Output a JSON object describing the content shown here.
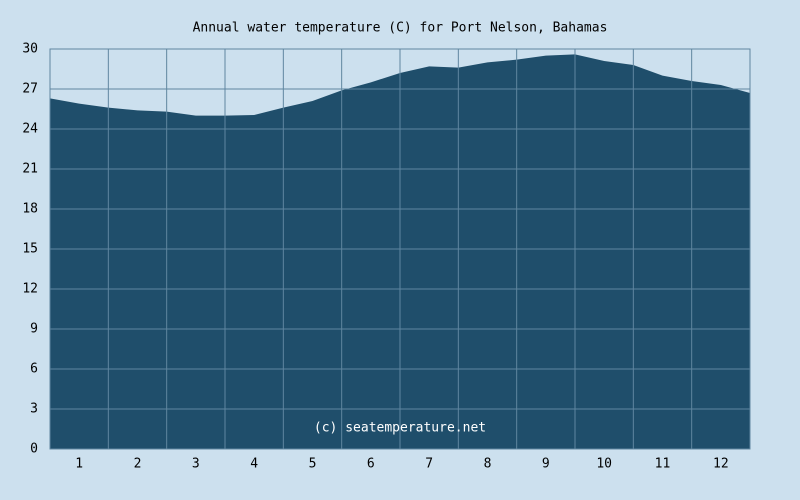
{
  "chart_data": {
    "type": "area",
    "title": "Annual water temperature (C) for Port Nelson, Bahamas",
    "annotation": "(c) seatemperature.net",
    "x": [
      0,
      0.5,
      1,
      1.5,
      2,
      2.5,
      3,
      3.5,
      4,
      4.5,
      5,
      5.5,
      6,
      6.5,
      7,
      7.5,
      8,
      8.5,
      9,
      9.5,
      10,
      10.5,
      11,
      11.5,
      12
    ],
    "values": [
      26.3,
      25.9,
      25.6,
      25.4,
      25.3,
      25.0,
      25.0,
      25.05,
      25.6,
      26.1,
      26.9,
      27.5,
      28.2,
      28.7,
      28.6,
      29.0,
      29.2,
      29.5,
      29.6,
      29.1,
      28.8,
      28.0,
      27.6,
      27.3,
      26.7
    ],
    "color": "#1f4e6b",
    "xlim": [
      0,
      12
    ],
    "xticks": [
      {
        "value": 0.5,
        "label": "1"
      },
      {
        "value": 1.5,
        "label": "2"
      },
      {
        "value": 2.5,
        "label": "3"
      },
      {
        "value": 3.5,
        "label": "4"
      },
      {
        "value": 4.5,
        "label": "5"
      },
      {
        "value": 5.5,
        "label": "6"
      },
      {
        "value": 6.5,
        "label": "7"
      },
      {
        "value": 7.5,
        "label": "8"
      },
      {
        "value": 8.5,
        "label": "9"
      },
      {
        "value": 9.5,
        "label": "10"
      },
      {
        "value": 10.5,
        "label": "11"
      },
      {
        "value": 11.5,
        "label": "12"
      }
    ],
    "ylim": [
      0,
      30
    ],
    "yticks": [
      0,
      3,
      6,
      9,
      12,
      15,
      18,
      21,
      24,
      27,
      30
    ],
    "grid": true
  }
}
